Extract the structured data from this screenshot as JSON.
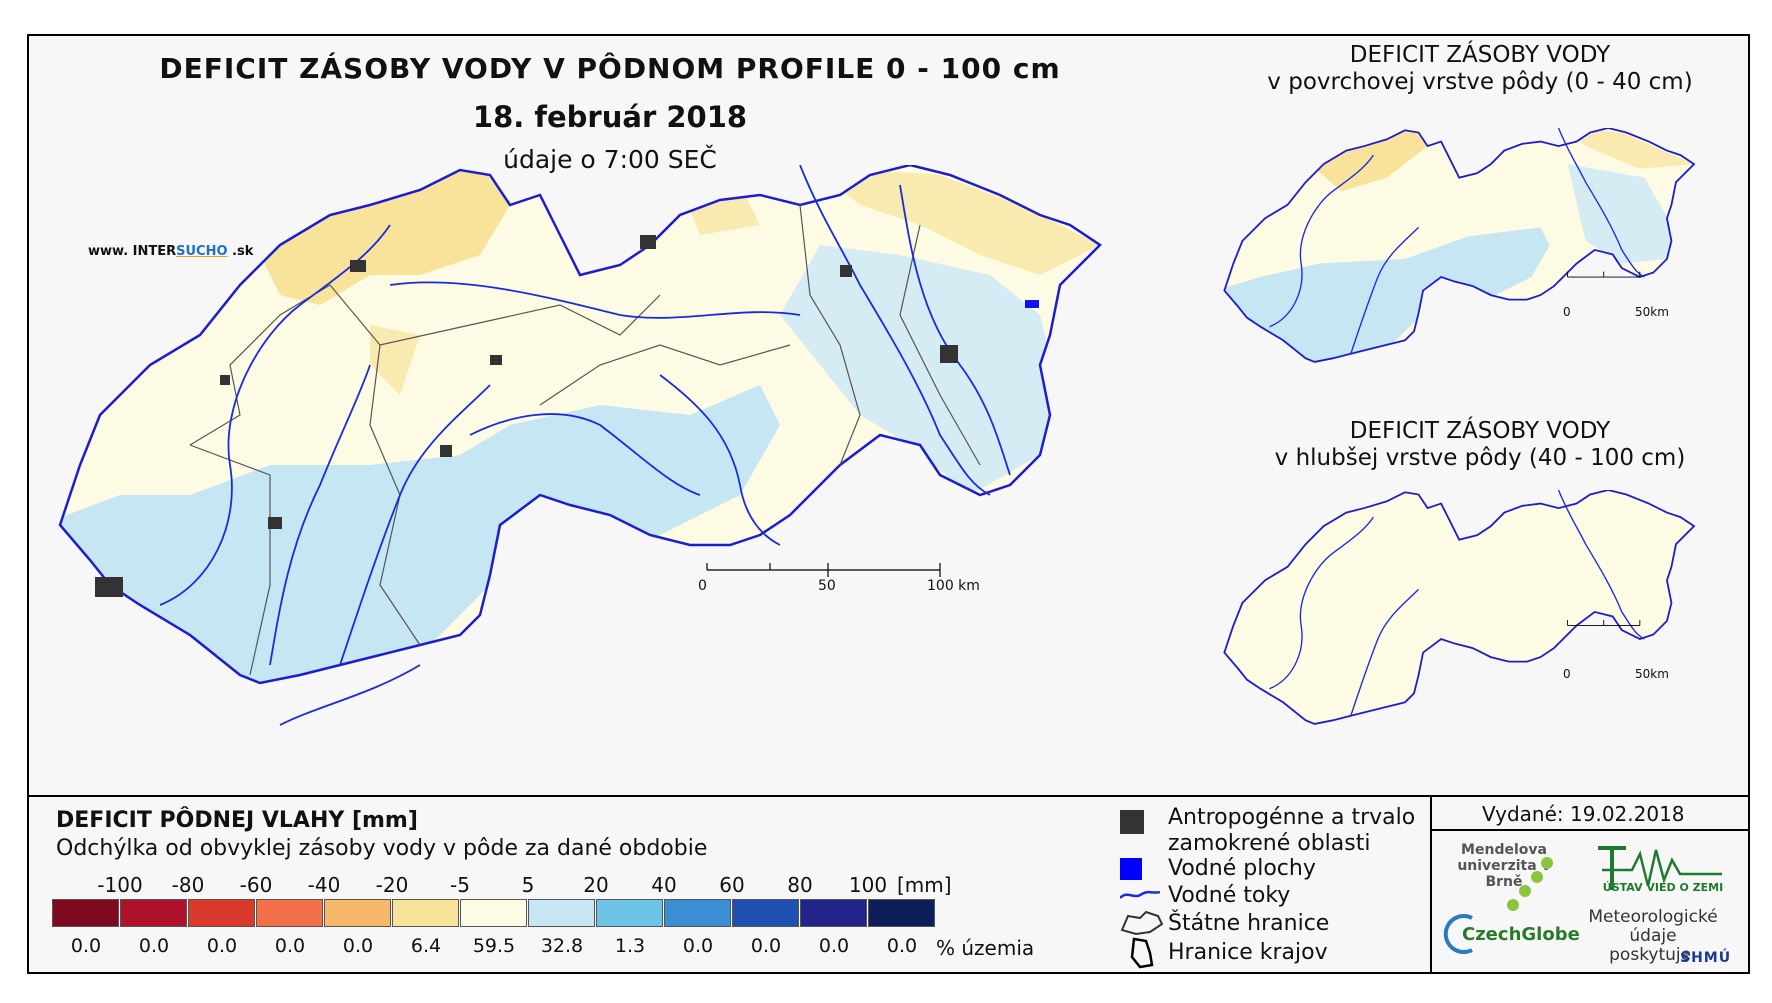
{
  "title": {
    "main": "DEFICIT ZÁSOBY VODY V PÔDNOM PROFILE 0 - 100 cm",
    "date": "18. február 2018",
    "time": "údaje o 7:00 SEČ"
  },
  "website": {
    "prefix": "www. INTER",
    "highlight": "SUCHO",
    "suffix": " .sk"
  },
  "side_panels": [
    {
      "line1": "DEFICIT ZÁSOBY VODY",
      "line2": "v povrchovej vrstve pôdy (0 - 40 cm)",
      "scale_labels": [
        "0",
        "50km"
      ]
    },
    {
      "line1": "DEFICIT ZÁSOBY VODY",
      "line2": "v hlubšej vrstve pôdy (40 - 100 cm)",
      "scale_labels": [
        "0",
        "50km"
      ]
    }
  ],
  "main_scale_labels": [
    "0",
    "50",
    "100 km"
  ],
  "legend": {
    "title": "DEFICIT PÔDNEJ VLAHY [mm]",
    "subtitle": "Odchýlka od obvyklej zásoby vody v pôde za dané obdobie",
    "unit": "[mm]",
    "pct_unit": "% územia",
    "boundaries": [
      "-100",
      "-80",
      "-60",
      "-40",
      "-20",
      "-5",
      "5",
      "20",
      "40",
      "60",
      "80",
      "100"
    ],
    "colors": [
      "#7d0a1e",
      "#b0112a",
      "#d93a2c",
      "#f2704a",
      "#f7b86a",
      "#f7e49a",
      "#fdfbe3",
      "#c6e6f4",
      "#6ec4e6",
      "#3a8fd4",
      "#1f4fb0",
      "#22248a",
      "#0e1e5a"
    ],
    "percentages": [
      "0.0",
      "0.0",
      "0.0",
      "0.0",
      "0.0",
      "6.4",
      "59.5",
      "32.8",
      "1.3",
      "0.0",
      "0.0",
      "0.0",
      "0.0"
    ]
  },
  "symbols": [
    {
      "label": "Antropogénne a trvalo zamokrené oblasti",
      "icon": "dark-square"
    },
    {
      "label": "Vodné plochy",
      "icon": "blue-square"
    },
    {
      "label": "Vodné toky",
      "icon": "blue-wave-line"
    },
    {
      "label": "Štátne hranice",
      "icon": "border-outline"
    },
    {
      "label": "Hranice krajov",
      "icon": "region-outline"
    }
  ],
  "issued": "Vydané: 19.02.2018",
  "logos": {
    "mendel": "Mendelova univerzita v Brně",
    "czechglobe": "CzechGlobe",
    "ustav": "ÚSTAV VIED O ZEMI",
    "meteo": "Meteorologické údaje poskytuje:",
    "shmu": "SHMÚ"
  }
}
